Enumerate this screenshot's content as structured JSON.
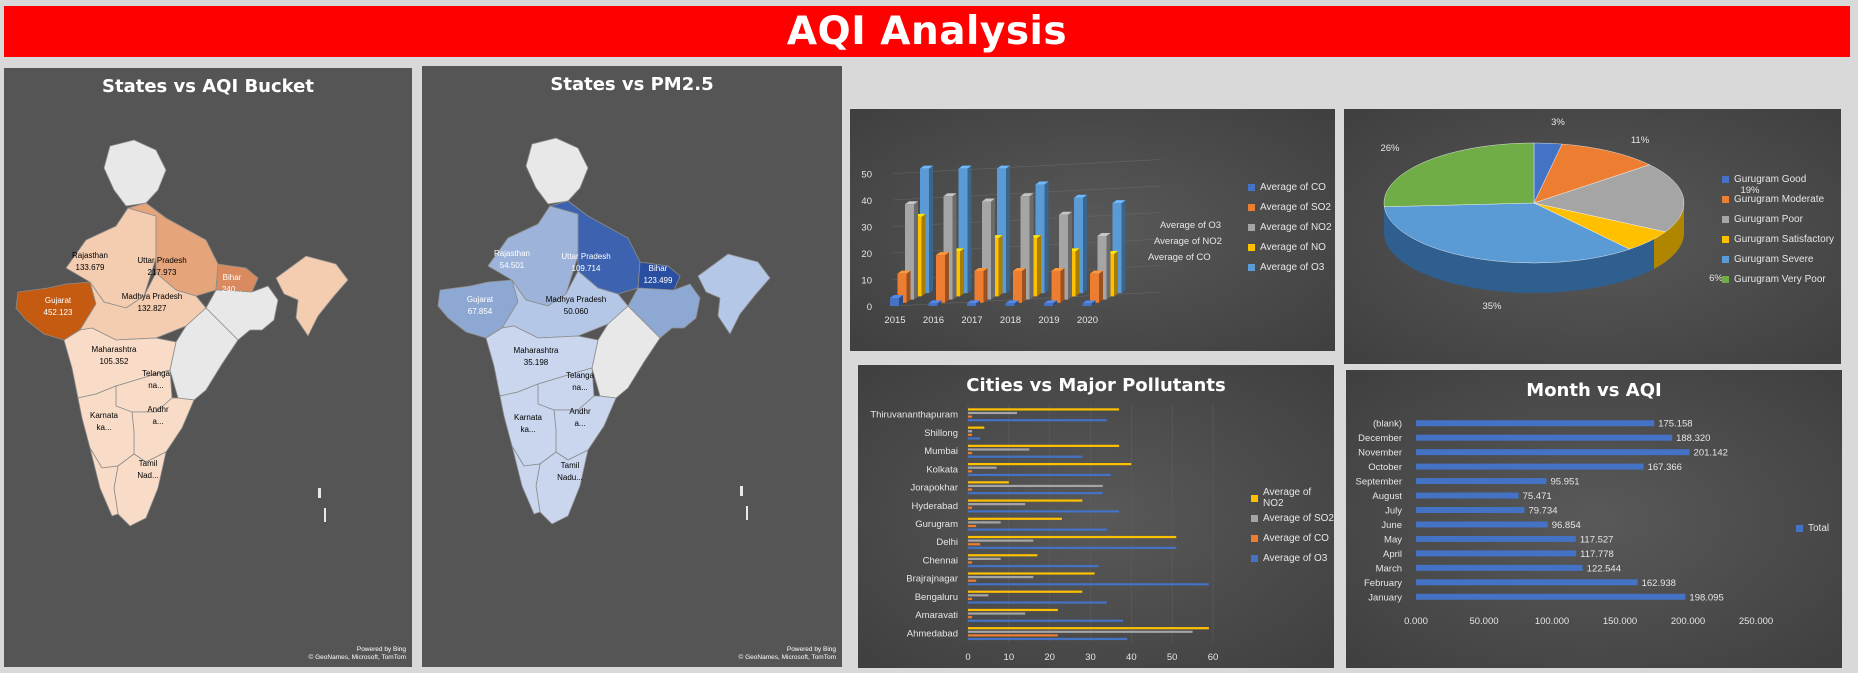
{
  "dashboard": {
    "title": "AQI Analysis"
  },
  "map1": {
    "title": "States vs AQI Bucket",
    "credit_line1": "Powered by Bing",
    "credit_line2": "© GeoNames, Microsoft, TomTom",
    "labels": [
      {
        "name": "Rajasthan",
        "value": "133.679"
      },
      {
        "name": "Uttar Pradesh",
        "value": "217.973"
      },
      {
        "name": "Bihar",
        "value": "240..."
      },
      {
        "name": "Gujarat",
        "value": "452.123"
      },
      {
        "name": "Madhya Pradesh",
        "value": "132.827"
      },
      {
        "name": "Maharashtra",
        "value": "105.352"
      },
      {
        "name": "Telanga\nna...",
        "value": ""
      },
      {
        "name": "Andhr\na...",
        "value": ""
      },
      {
        "name": "Karnata\nka...",
        "value": ""
      },
      {
        "name": "Tamil\nNad...",
        "value": ""
      }
    ]
  },
  "map2": {
    "title": "States vs PM2.5",
    "credit_line1": "Powered by Bing",
    "credit_line2": "© GeoNames, Microsoft, TomTom",
    "labels": [
      {
        "name": "Rajasthan",
        "value": "54.501"
      },
      {
        "name": "Uttar Pradesh",
        "value": "109.714"
      },
      {
        "name": "Bihar",
        "value": "123.499"
      },
      {
        "name": "Gujarat",
        "value": "67.854"
      },
      {
        "name": "Madhya Pradesh",
        "value": "50.060"
      },
      {
        "name": "Maharashtra",
        "value": "35.198"
      },
      {
        "name": "Telanga\nna...",
        "value": ""
      },
      {
        "name": "Andhr\na...",
        "value": ""
      },
      {
        "name": "Karnata\nka...",
        "value": ""
      },
      {
        "name": "Tamil\nNadu...",
        "value": ""
      }
    ]
  },
  "chart_data": [
    {
      "type": "bar",
      "subtype": "3d-clustered-column",
      "title": "",
      "categories": [
        "2015",
        "2016",
        "2017",
        "2018",
        "2019",
        "2020"
      ],
      "depth_labels": [
        "Average of O3",
        "Average of NO2",
        "Average of CO"
      ],
      "yticks": [
        "0",
        "10",
        "20",
        "30",
        "40",
        "50"
      ],
      "ylim": [
        0,
        60
      ],
      "legend_position": "right",
      "series": [
        {
          "name": "Average of CO",
          "color": "#4472c4",
          "values": [
            3,
            1,
            1,
            1,
            1,
            1
          ]
        },
        {
          "name": "Average of SO2",
          "color": "#ed7d31",
          "values": [
            11,
            18,
            12,
            12,
            12,
            11
          ]
        },
        {
          "name": "Average of NO2",
          "color": "#a5a5a5",
          "values": [
            36,
            39,
            37,
            39,
            32,
            24
          ]
        },
        {
          "name": "Average of NO",
          "color": "#ffc000",
          "values": [
            30,
            17,
            22,
            22,
            17,
            16
          ]
        },
        {
          "name": "Average of O3",
          "color": "#5b9bd5",
          "values": [
            47,
            47,
            47,
            41,
            36,
            34
          ]
        }
      ]
    },
    {
      "type": "pie",
      "subtype": "3d",
      "title": "",
      "legend_position": "right",
      "slices": [
        {
          "name": "Gurugram Good",
          "value": 3,
          "label": "3%",
          "color": "#4472c4"
        },
        {
          "name": "Gurugram Moderate",
          "value": 11,
          "label": "11%",
          "color": "#ed7d31"
        },
        {
          "name": "Gurugram Poor",
          "value": 19,
          "label": "19%",
          "color": "#a5a5a5"
        },
        {
          "name": "Gurugram Satisfactory",
          "value": 6,
          "label": "6%",
          "color": "#ffc000"
        },
        {
          "name": "Gurugram Severe",
          "value": 35,
          "label": "35%",
          "color": "#5b9bd5"
        },
        {
          "name": "Gurugram Very Poor",
          "value": 26,
          "label": "26%",
          "color": "#70ad47"
        }
      ]
    },
    {
      "type": "bar",
      "subtype": "horizontal-clustered",
      "title": "Cities vs Major Pollutants",
      "categories": [
        "Ahmedabad",
        "Amaravati",
        "Bengaluru",
        "Brajrajnagar",
        "Chennai",
        "Delhi",
        "Gurugram",
        "Hyderabad",
        "Jorapokhar",
        "Kolkata",
        "Mumbai",
        "Shillong",
        "Thiruvananthapuram"
      ],
      "xticks": [
        "0",
        "10",
        "20",
        "30",
        "40",
        "50",
        "60"
      ],
      "xlim": [
        0,
        60
      ],
      "legend_position": "right",
      "series": [
        {
          "name": "Average of O3",
          "color": "#4472c4",
          "values": [
            39,
            38,
            34,
            59,
            32,
            51,
            34,
            37,
            33,
            35,
            28,
            3,
            34
          ]
        },
        {
          "name": "Average of CO",
          "color": "#ed7d31",
          "values": [
            22,
            1,
            1,
            2,
            1,
            3,
            2,
            1,
            1,
            1,
            1,
            1,
            1
          ]
        },
        {
          "name": "Average of SO2",
          "color": "#a5a5a5",
          "values": [
            55,
            14,
            5,
            16,
            8,
            16,
            8,
            14,
            33,
            7,
            15,
            1,
            12
          ]
        },
        {
          "name": "Average of NO2",
          "color": "#ffc000",
          "values": [
            59,
            22,
            28,
            31,
            17,
            51,
            23,
            28,
            10,
            40,
            37,
            4,
            37
          ]
        }
      ]
    },
    {
      "type": "bar",
      "subtype": "horizontal",
      "title": "Month vs AQI",
      "categories": [
        "January",
        "February",
        "March",
        "April",
        "May",
        "June",
        "July",
        "August",
        "September",
        "October",
        "November",
        "December",
        "(blank)"
      ],
      "values": [
        198.095,
        162.938,
        122.544,
        117.778,
        117.527,
        96.854,
        79.734,
        75.471,
        95.951,
        167.366,
        201.142,
        188.32,
        175.158
      ],
      "data_labels": [
        "198.095",
        "162.938",
        "122.544",
        "117.778",
        "117.527",
        "96.854",
        "79.734",
        "75.471",
        "95.951",
        "167.366",
        "201.142",
        "188.320",
        "175.158"
      ],
      "xticks": [
        "0.000",
        "50.000",
        "100.000",
        "150.000",
        "200.000",
        "250.000"
      ],
      "xlim": [
        0,
        250
      ],
      "series_name": "Total",
      "color": "#4472c4",
      "legend_position": "right"
    }
  ]
}
